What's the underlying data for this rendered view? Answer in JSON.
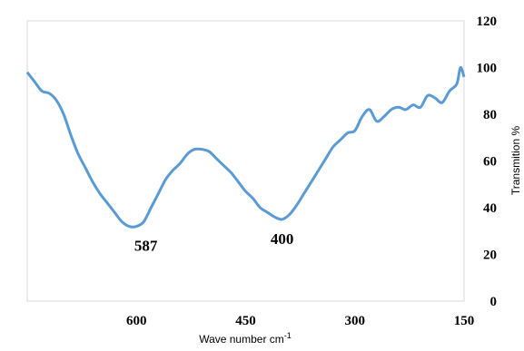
{
  "chart_data": {
    "type": "line",
    "xlabel": "Wave number cm",
    "xlabel_sup": "-1",
    "ylabel": "Transmition %",
    "xlim": [
      750,
      150
    ],
    "ylim": [
      0,
      120
    ],
    "x_ticks": [
      600,
      450,
      300,
      150
    ],
    "y_ticks": [
      0,
      20,
      40,
      60,
      80,
      100,
      120
    ],
    "grid": false,
    "legend": "none",
    "series": [
      {
        "color": "#5b9bd5",
        "x": [
          750,
          740,
          730,
          720,
          710,
          700,
          690,
          680,
          670,
          660,
          650,
          640,
          630,
          620,
          610,
          600,
          590,
          580,
          570,
          560,
          550,
          540,
          530,
          520,
          510,
          500,
          490,
          480,
          470,
          460,
          450,
          440,
          430,
          420,
          410,
          400,
          390,
          380,
          370,
          360,
          350,
          340,
          330,
          320,
          310,
          300,
          290,
          280,
          270,
          260,
          250,
          240,
          230,
          220,
          210,
          200,
          190,
          180,
          170,
          160,
          155,
          150
        ],
        "y": [
          98,
          94,
          90,
          89,
          86,
          80,
          71,
          63,
          57,
          51,
          46,
          42,
          38,
          34,
          32,
          32,
          34,
          40,
          46,
          52,
          56,
          59,
          63,
          65,
          65,
          64,
          61,
          58,
          55,
          51,
          47,
          44,
          40,
          38,
          36,
          35,
          37,
          41,
          46,
          51,
          56,
          61,
          66,
          69,
          72,
          73,
          79,
          82,
          77,
          79,
          82,
          83,
          82,
          84,
          83,
          88,
          87,
          85,
          90,
          93,
          100,
          96
        ]
      }
    ],
    "annotations": [
      {
        "text": "587",
        "x": 587,
        "y": 32
      },
      {
        "text": "400",
        "x": 400,
        "y": 35
      }
    ]
  }
}
